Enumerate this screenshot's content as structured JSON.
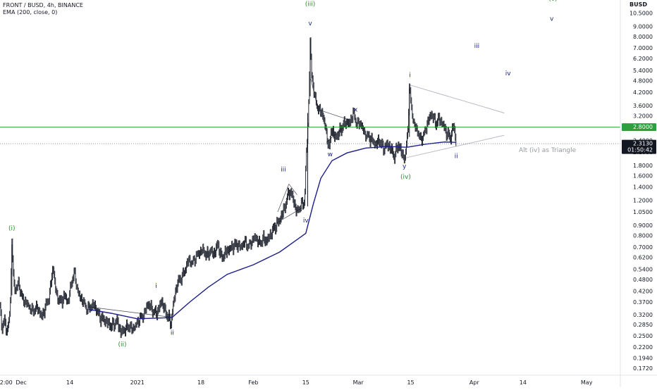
{
  "legend": {
    "symbol_line": "FRONT / BUSD, 4h, BINANCE",
    "indicator_line": "EMA (200, close, 0)"
  },
  "currency": "BUSD",
  "colors": {
    "candle": "#131722",
    "ema": "#1e1e8c",
    "resistance": "#2e9e3e",
    "wave_major": "#2e8b2e",
    "wave_minor": "#1a237e",
    "trend": "#b9bcc4",
    "price_badge": "#131722",
    "level_badge": "#2e9e3e"
  },
  "chart_data": {
    "type": "candlestick",
    "title": "FRONT / BUSD, 4h, BINANCE",
    "y_scale": "log",
    "ylim": [
      0.16,
      12.2
    ],
    "xlim": [
      "2020-11-25T08:00",
      "2021-05-10"
    ],
    "x_ticks": [
      {
        "t": "2020-11-26T12:00",
        "label": "12:00"
      },
      {
        "t": "2020-12-01",
        "label": "Dec"
      },
      {
        "t": "2020-12-14",
        "label": "14"
      },
      {
        "t": "2021-01-01",
        "label": "2021"
      },
      {
        "t": "2021-01-18",
        "label": "18"
      },
      {
        "t": "2021-02-01",
        "label": "Feb"
      },
      {
        "t": "2021-02-15",
        "label": "15"
      },
      {
        "t": "2021-03-01",
        "label": "Mar"
      },
      {
        "t": "2021-03-15",
        "label": "15"
      },
      {
        "t": "2021-04-01",
        "label": "Apr"
      },
      {
        "t": "2021-04-14",
        "label": "14"
      },
      {
        "t": "2021-05-01",
        "label": "May"
      }
    ],
    "y_ticks": [
      "12.0000",
      "10.5000",
      "9.0000",
      "8.0000",
      "7.0000",
      "6.2000",
      "5.4000",
      "4.8000",
      "4.2000",
      "3.6000",
      "3.2000",
      "2.4000",
      "2.1000",
      "1.8000",
      "1.6000",
      "1.4000",
      "1.2000",
      "1.0500",
      "0.9000",
      "0.8000",
      "0.7000",
      "0.6200",
      "0.5400",
      "0.4800",
      "0.4200",
      "0.3700",
      "0.3200",
      "0.2850",
      "0.2500",
      "0.2200",
      "0.1940",
      "0.1720"
    ],
    "price_path": [
      [
        "2020-11-25T08:00",
        0.36
      ],
      [
        "2020-11-25T20:00",
        0.27
      ],
      [
        "2020-11-26T12:00",
        0.3
      ],
      [
        "2020-11-27T08:00",
        0.26
      ],
      [
        "2020-11-28T00:00",
        0.34
      ],
      [
        "2020-11-28T12:00",
        0.72
      ],
      [
        "2020-11-29T04:00",
        0.42
      ],
      [
        "2020-11-30T08:00",
        0.46
      ],
      [
        "2020-12-01T08:00",
        0.38
      ],
      [
        "2020-12-02T16:00",
        0.36
      ],
      [
        "2020-12-04T00:00",
        0.33
      ],
      [
        "2020-12-05T08:00",
        0.35
      ],
      [
        "2020-12-06T12:00",
        0.31
      ],
      [
        "2020-12-07T16:00",
        0.36
      ],
      [
        "2020-12-08T12:00",
        0.4
      ],
      [
        "2020-12-09T12:00",
        0.56
      ],
      [
        "2020-12-10T08:00",
        0.41
      ],
      [
        "2020-12-11T12:00",
        0.37
      ],
      [
        "2020-12-12T16:00",
        0.4
      ],
      [
        "2020-12-13T12:00",
        0.37
      ],
      [
        "2020-12-14T12:00",
        0.47
      ],
      [
        "2020-12-15T04:00",
        0.52
      ],
      [
        "2020-12-16T08:00",
        0.4
      ],
      [
        "2020-12-17T12:00",
        0.37
      ],
      [
        "2020-12-18T16:00",
        0.34
      ],
      [
        "2020-12-20T12:00",
        0.36
      ],
      [
        "2020-12-22T00:00",
        0.31
      ],
      [
        "2020-12-23T12:00",
        0.3
      ],
      [
        "2020-12-25T00:00",
        0.28
      ],
      [
        "2020-12-26T16:00",
        0.3
      ],
      [
        "2020-12-27T12:00",
        0.26
      ],
      [
        "2020-12-28T12:00",
        0.27
      ],
      [
        "2020-12-29T16:00",
        0.28
      ],
      [
        "2020-12-30T12:00",
        0.27
      ],
      [
        "2020-12-31T12:00",
        0.28
      ],
      [
        "2021-01-01T12:00",
        0.3
      ],
      [
        "2021-01-02T20:00",
        0.32
      ],
      [
        "2021-01-03T16:00",
        0.36
      ],
      [
        "2021-01-04T12:00",
        0.35
      ],
      [
        "2021-01-05T12:00",
        0.33
      ],
      [
        "2021-01-06T12:00",
        0.33
      ],
      [
        "2021-01-07T12:00",
        0.38
      ],
      [
        "2021-01-08T12:00",
        0.33
      ],
      [
        "2021-01-09T08:00",
        0.31
      ],
      [
        "2021-01-10T00:00",
        0.29
      ],
      [
        "2021-01-10T16:00",
        0.37
      ],
      [
        "2021-01-11T16:00",
        0.46
      ],
      [
        "2021-01-12T16:00",
        0.49
      ],
      [
        "2021-01-13T16:00",
        0.53
      ],
      [
        "2021-01-14T16:00",
        0.6
      ],
      [
        "2021-01-15T16:00",
        0.58
      ],
      [
        "2021-01-16T16:00",
        0.62
      ],
      [
        "2021-01-17T12:00",
        0.65
      ],
      [
        "2021-01-18T12:00",
        0.68
      ],
      [
        "2021-01-19T12:00",
        0.63
      ],
      [
        "2021-01-20T12:00",
        0.67
      ],
      [
        "2021-01-21T16:00",
        0.65
      ],
      [
        "2021-01-22T12:00",
        0.73
      ],
      [
        "2021-01-23T12:00",
        0.62
      ],
      [
        "2021-01-24T16:00",
        0.66
      ],
      [
        "2021-01-25T16:00",
        0.69
      ],
      [
        "2021-01-26T16:00",
        0.71
      ],
      [
        "2021-01-27T16:00",
        0.72
      ],
      [
        "2021-01-28T16:00",
        0.7
      ],
      [
        "2021-01-29T16:00",
        0.74
      ],
      [
        "2021-01-30T16:00",
        0.7
      ],
      [
        "2021-01-31T12:00",
        0.74
      ],
      [
        "2021-02-01T12:00",
        0.78
      ],
      [
        "2021-02-02T16:00",
        0.73
      ],
      [
        "2021-02-03T16:00",
        0.77
      ],
      [
        "2021-02-04T12:00",
        0.75
      ],
      [
        "2021-02-05T16:00",
        0.82
      ],
      [
        "2021-02-06T16:00",
        0.88
      ],
      [
        "2021-02-07T16:00",
        0.94
      ],
      [
        "2021-02-08T16:00",
        1.02
      ],
      [
        "2021-02-09T16:00",
        1.16
      ],
      [
        "2021-02-10T12:00",
        1.35
      ],
      [
        "2021-02-11T12:00",
        1.25
      ],
      [
        "2021-02-12T12:00",
        1.05
      ],
      [
        "2021-02-13T16:00",
        1.13
      ],
      [
        "2021-02-14T16:00",
        1.17
      ],
      [
        "2021-02-15T04:00",
        2.1
      ],
      [
        "2021-02-15T16:00",
        3.1
      ],
      [
        "2021-02-16T04:00",
        7.8
      ],
      [
        "2021-02-16T12:00",
        5.1
      ],
      [
        "2021-02-17T04:00",
        4.3
      ],
      [
        "2021-02-17T16:00",
        3.7
      ],
      [
        "2021-02-18T16:00",
        3.4
      ],
      [
        "2021-02-19T16:00",
        3.2
      ],
      [
        "2021-02-20T12:00",
        2.6
      ],
      [
        "2021-02-21T08:00",
        2.2
      ],
      [
        "2021-02-21T20:00",
        2.8
      ],
      [
        "2021-02-22T16:00",
        2.5
      ],
      [
        "2021-02-23T16:00",
        2.6
      ],
      [
        "2021-02-24T16:00",
        2.8
      ],
      [
        "2021-02-25T16:00",
        3.0
      ],
      [
        "2021-02-26T16:00",
        2.9
      ],
      [
        "2021-02-27T16:00",
        3.3
      ],
      [
        "2021-02-28T16:00",
        2.9
      ],
      [
        "2021-03-01T16:00",
        2.9
      ],
      [
        "2021-03-02T16:00",
        2.6
      ],
      [
        "2021-03-03T16:00",
        2.5
      ],
      [
        "2021-03-04T16:00",
        2.4
      ],
      [
        "2021-03-05T16:00",
        2.3
      ],
      [
        "2021-03-06T16:00",
        2.4
      ],
      [
        "2021-03-07T16:00",
        2.2
      ],
      [
        "2021-03-08T16:00",
        2.3
      ],
      [
        "2021-03-09T16:00",
        2.2
      ],
      [
        "2021-03-10T16:00",
        2.0
      ],
      [
        "2021-03-11T16:00",
        2.3
      ],
      [
        "2021-03-12T12:00",
        2.1
      ],
      [
        "2021-03-13T12:00",
        1.95
      ],
      [
        "2021-03-14T04:00",
        2.6
      ],
      [
        "2021-03-14T16:00",
        4.4
      ],
      [
        "2021-03-15T08:00",
        3.4
      ],
      [
        "2021-03-15T20:00",
        2.9
      ],
      [
        "2021-03-16T16:00",
        2.7
      ],
      [
        "2021-03-17T16:00",
        2.4
      ],
      [
        "2021-03-18T16:00",
        2.6
      ],
      [
        "2021-03-19T16:00",
        3.0
      ],
      [
        "2021-03-20T16:00",
        3.3
      ],
      [
        "2021-03-21T16:00",
        2.9
      ],
      [
        "2021-03-22T16:00",
        3.1
      ],
      [
        "2021-03-23T16:00",
        2.9
      ],
      [
        "2021-03-24T16:00",
        2.6
      ],
      [
        "2021-03-25T16:00",
        2.5
      ],
      [
        "2021-03-26T12:00",
        2.9
      ],
      [
        "2021-03-27T04:00",
        2.31
      ]
    ],
    "ema_200": [
      [
        "2020-12-19T00:00",
        0.34
      ],
      [
        "2020-12-25T00:00",
        0.325
      ],
      [
        "2021-01-01T00:00",
        0.305
      ],
      [
        "2021-01-08T00:00",
        0.308
      ],
      [
        "2021-01-10T08:00",
        0.31
      ],
      [
        "2021-01-15T00:00",
        0.37
      ],
      [
        "2021-01-20T00:00",
        0.44
      ],
      [
        "2021-01-25T00:00",
        0.51
      ],
      [
        "2021-02-01T00:00",
        0.57
      ],
      [
        "2021-02-08T00:00",
        0.66
      ],
      [
        "2021-02-13T00:00",
        0.77
      ],
      [
        "2021-02-15T00:00",
        0.82
      ],
      [
        "2021-02-17T00:00",
        1.15
      ],
      [
        "2021-02-19T00:00",
        1.55
      ],
      [
        "2021-02-22T00:00",
        1.9
      ],
      [
        "2021-02-26T00:00",
        2.08
      ],
      [
        "2021-03-03T00:00",
        2.2
      ],
      [
        "2021-03-09T00:00",
        2.24
      ],
      [
        "2021-03-14T00:00",
        2.22
      ],
      [
        "2021-03-19T00:00",
        2.3
      ],
      [
        "2021-03-24T00:00",
        2.36
      ],
      [
        "2021-03-27T04:00",
        2.35
      ]
    ],
    "current_price": "2.3130",
    "countdown": "01:50:42",
    "horizontal_level": "2.8000",
    "annotation": "Alt (iv) as Triangle",
    "wave_labels": [
      {
        "text": "(i)",
        "t": "2020-11-28T12:00",
        "price": 0.85,
        "color": "major"
      },
      {
        "text": "(ii)",
        "t": "2020-12-28T00:00",
        "price": 0.222,
        "color": "major"
      },
      {
        "text": "(iii)",
        "t": "2021-02-16T04:00",
        "price": 11.4,
        "color": "major"
      },
      {
        "text": "(iv)",
        "t": "2021-03-13T16:00",
        "price": 1.54,
        "color": "major"
      },
      {
        "text": "(v)",
        "t": "2021-04-22T00:00",
        "price": 12.1,
        "color": "major"
      },
      {
        "text": "i",
        "t": "2021-01-06T00:00",
        "price": 0.435,
        "color": "minor"
      },
      {
        "text": "ii",
        "t": "2021-01-10T08:00",
        "price": 0.254,
        "color": "minor"
      },
      {
        "text": "iii",
        "t": "2021-02-09T00:00",
        "price": 1.68,
        "color": "minor"
      },
      {
        "text": "iv",
        "t": "2021-02-15T00:00",
        "price": 0.93,
        "color": "minor"
      },
      {
        "text": "v",
        "t": "2021-02-16T04:00",
        "price": 9.1,
        "color": "minor"
      },
      {
        "text": "w",
        "t": "2021-02-21T12:00",
        "price": 2.0,
        "color": "minor"
      },
      {
        "text": "x",
        "t": "2021-02-28T08:00",
        "price": 3.35,
        "color": "minor"
      },
      {
        "text": "y",
        "t": "2021-03-13T08:00",
        "price": 1.74,
        "color": "minor"
      },
      {
        "text": "i",
        "t": "2021-03-14T20:00",
        "price": 5.0,
        "color": "minor"
      },
      {
        "text": "ii",
        "t": "2021-03-27T04:00",
        "price": 1.96,
        "color": "minor"
      },
      {
        "text": "iii",
        "t": "2021-04-01T16:00",
        "price": 7.0,
        "color": "minor"
      },
      {
        "text": "iv",
        "t": "2021-04-10T00:00",
        "price": 5.1,
        "color": "minor"
      },
      {
        "text": "v",
        "t": "2021-04-21T16:00",
        "price": 9.6,
        "color": "minor"
      }
    ],
    "trendlines": [
      {
        "from": [
          "2021-03-15T00:00",
          4.55
        ],
        "to": [
          "2021-04-09T00:00",
          3.3
        ],
        "style": "trend"
      },
      {
        "from": [
          "2021-03-13T00:00",
          1.95
        ],
        "to": [
          "2021-04-09T00:00",
          2.55
        ],
        "style": "trend"
      },
      {
        "from": [
          "2020-12-19T00:00",
          0.35
        ],
        "to": [
          "2021-01-10T08:00",
          0.31
        ],
        "style": "dark"
      },
      {
        "from": [
          "2021-02-16T08:00",
          4.9
        ],
        "to": [
          "2021-02-18T00:00",
          3.6
        ],
        "style": "dark"
      },
      {
        "from": [
          "2021-02-19T00:00",
          3.4
        ],
        "to": [
          "2021-02-26T12:00",
          3.05
        ],
        "style": "dark"
      },
      {
        "from": [
          "2021-02-20T12:00",
          2.35
        ],
        "to": [
          "2021-02-25T16:00",
          2.85
        ],
        "style": "dark"
      },
      {
        "from": [
          "2021-02-07T00:00",
          0.92
        ],
        "to": [
          "2021-02-14T00:00",
          1.1
        ],
        "style": "dark"
      },
      {
        "from": [
          "2021-02-07T12:00",
          1.05
        ],
        "to": [
          "2021-02-10T12:00",
          1.45
        ],
        "style": "dark"
      },
      {
        "from": [
          "2021-02-10T12:00",
          1.45
        ],
        "to": [
          "2021-02-12T16:00",
          1.28
        ],
        "style": "dark"
      }
    ]
  }
}
